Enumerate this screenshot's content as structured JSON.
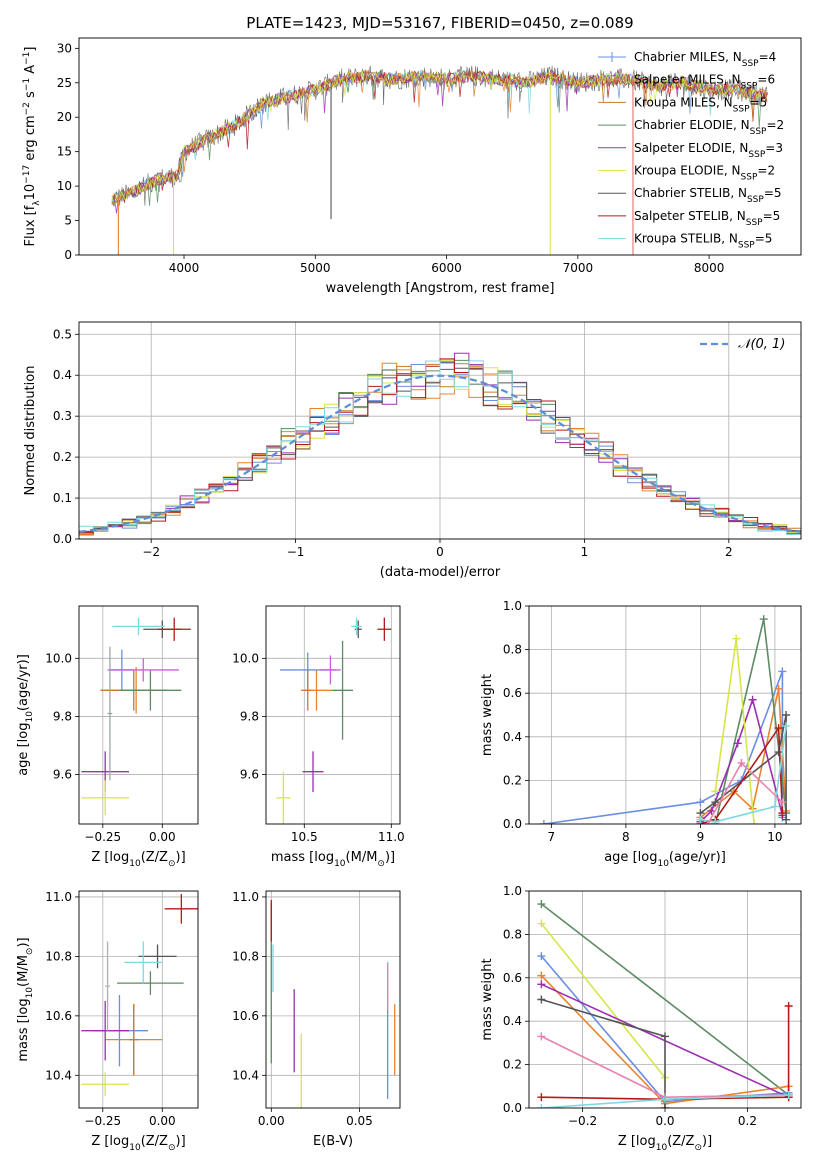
{
  "title": "PLATE=1423, MJD=53167, FIBERID=0450, z=0.089",
  "models": [
    {
      "label": "Chabrier MILES, N",
      "n": "4",
      "color": "#6a8fe0"
    },
    {
      "label": "Salpeter MILES, N",
      "n": "6",
      "color": "#e8842f"
    },
    {
      "label": "Kroupa MILES, N",
      "n": "5",
      "color": "#c77a2a"
    },
    {
      "label": "Chabrier ELODIE, N",
      "n": "2",
      "color": "#5d8b63"
    },
    {
      "label": "Salpeter ELODIE, N",
      "n": "3",
      "color": "#9b2fb0"
    },
    {
      "label": "Kroupa ELODIE, N",
      "n": "2",
      "color": "#d6e64a"
    },
    {
      "label": "Chabrier STELIB, N",
      "n": "5",
      "color": "#555555"
    },
    {
      "label": "Salpeter STELIB, N",
      "n": "5",
      "color": "#b31a1a"
    },
    {
      "label": "Kroupa STELIB, N",
      "n": "5",
      "color": "#7fd8e0"
    }
  ],
  "ssp_subscript": "SSP",
  "chart_data": [
    {
      "id": "spectrum",
      "type": "line",
      "xlabel": "wavelength [Angstrom, rest frame]",
      "ylabel": "Flux [f",
      "ylabel_sub": "λ",
      "ylabel_rest": "10",
      "ylabel_sup1": "−17",
      "ylabel_tail": " erg cm",
      "ylabel_sup2": "−2",
      "ylabel_tail2": " s",
      "ylabel_sup3": "−1",
      "ylabel_tail3": " A",
      "ylabel_sup4": "−1",
      "ylabel_end": "]",
      "xlim": [
        3200,
        8700
      ],
      "ylim": [
        0,
        31.5
      ],
      "xticks": [
        "4000",
        "5000",
        "6000",
        "7000",
        "8000"
      ],
      "yticks": [
        "0",
        "5",
        "10",
        "15",
        "20",
        "25",
        "30"
      ],
      "envelope_x": [
        3450,
        3600,
        3800,
        3950,
        4000,
        4200,
        4400,
        4600,
        4800,
        5000,
        5200,
        5400,
        5600,
        5800,
        6000,
        6200,
        6400,
        6600,
        6800,
        7000,
        7200,
        7400,
        7600,
        7800,
        8000,
        8200,
        8450
      ],
      "envelope_y": [
        8,
        9,
        11,
        11.5,
        15,
        17,
        19,
        22,
        23,
        24,
        25.5,
        26,
        25.5,
        26,
        25.5,
        26,
        25.5,
        25,
        26,
        25,
        25.5,
        25.5,
        24.5,
        25,
        24,
        24,
        23
      ],
      "spikes": [
        {
          "x": 3500,
          "y": 0,
          "color": "#e8842f"
        },
        {
          "x": 3920,
          "y": 0,
          "color": "#d6e64a"
        },
        {
          "x": 5120,
          "y": 5.2,
          "color": "#555555"
        },
        {
          "x": 6790,
          "y": 0,
          "color": "#d6e64a"
        },
        {
          "x": 7420,
          "y": 0,
          "color": "#e87070"
        }
      ]
    },
    {
      "id": "residuals",
      "type": "histogram",
      "xlabel": "(data-model)/error",
      "ylabel": "Normed distribution",
      "legend_label": "𝒩(0, 1)",
      "xlim": [
        -2.5,
        2.5
      ],
      "ylim": [
        0,
        0.53
      ],
      "xticks": [
        "−2",
        "−1",
        "0",
        "1",
        "2"
      ],
      "yticks": [
        "0.0",
        "0.1",
        "0.2",
        "0.3",
        "0.4",
        "0.5"
      ],
      "bin_width": 0.1,
      "gaussian_color": "#5b8fd6"
    },
    {
      "id": "age-vs-z",
      "type": "scatter",
      "xlabel": "Z [log",
      "xlabel_sub": "10",
      "xlabel_rest": "(Z/Z",
      "xlabel_sun": "⊙",
      "xlabel_end": ")]",
      "ylabel": "age  [log",
      "ylabel_sub": "10",
      "ylabel_rest": "(age/yr)]",
      "xlim": [
        -0.35,
        0.15
      ],
      "ylim": [
        9.43,
        10.18
      ],
      "xticks": [
        "−0.25",
        "0.00"
      ],
      "yticks": [
        "9.6",
        "9.8",
        "10.0"
      ],
      "points": [
        {
          "x": -0.17,
          "y": 9.96,
          "xerr": 0.05,
          "yerr": 0.07,
          "color": "#6a8fe0"
        },
        {
          "x": -0.11,
          "y": 9.89,
          "xerr": 0.13,
          "yerr": 0.08,
          "color": "#e8842f"
        },
        {
          "x": -0.12,
          "y": 9.89,
          "xerr": 0.14,
          "yerr": 0.07,
          "color": "#c77a2a"
        },
        {
          "x": -0.05,
          "y": 9.89,
          "xerr": 0.13,
          "yerr": 0.07,
          "color": "#5d8b63"
        },
        {
          "x": -0.24,
          "y": 9.61,
          "xerr": 0.1,
          "yerr": 0.07,
          "color": "#9b2fb0"
        },
        {
          "x": -0.24,
          "y": 9.52,
          "xerr": 0.1,
          "yerr": 0.06,
          "color": "#d6e64a"
        },
        {
          "x": 0.0,
          "y": 10.1,
          "xerr": 0.08,
          "yerr": 0.03,
          "color": "#555555"
        },
        {
          "x": 0.05,
          "y": 10.1,
          "xerr": 0.07,
          "yerr": 0.04,
          "color": "#b31a1a"
        },
        {
          "x": -0.1,
          "y": 10.11,
          "xerr": 0.11,
          "yerr": 0.03,
          "color": "#7fd8e0"
        },
        {
          "x": -0.08,
          "y": 9.96,
          "xerr": 0.15,
          "yerr": 0.04,
          "color": "#c962d8"
        },
        {
          "x": -0.22,
          "y": 9.81,
          "xerr": 0.01,
          "yerr": 0.23,
          "color": "#9aa8a8"
        }
      ]
    },
    {
      "id": "age-vs-mass",
      "type": "scatter",
      "xlabel": "mass [log",
      "xlabel_sub": "10",
      "xlabel_rest": "(M/M",
      "xlabel_sun": "⊙",
      "xlabel_end": ")]",
      "xlim": [
        10.28,
        11.05
      ],
      "ylim": [
        9.43,
        10.18
      ],
      "xticks": [
        "10.5",
        "11.0"
      ],
      "yticks": [
        "9.6",
        "9.8",
        "10.0"
      ],
      "points": [
        {
          "x": 10.52,
          "y": 9.96,
          "xerr": 0.16,
          "yerr": 0.06,
          "color": "#6a8fe0"
        },
        {
          "x": 10.57,
          "y": 9.89,
          "xerr": 0.09,
          "yerr": 0.07,
          "color": "#e8842f"
        },
        {
          "x": 10.52,
          "y": 9.89,
          "xerr": 0.02,
          "yerr": 0.07,
          "color": "#c77a2a"
        },
        {
          "x": 10.72,
          "y": 9.89,
          "xerr": 0.06,
          "yerr": 0.17,
          "color": "#5d8b63"
        },
        {
          "x": 10.55,
          "y": 9.61,
          "xerr": 0.06,
          "yerr": 0.07,
          "color": "#9b2fb0"
        },
        {
          "x": 10.38,
          "y": 9.52,
          "xerr": 0.04,
          "yerr": 0.09,
          "color": "#d6e64a"
        },
        {
          "x": 10.81,
          "y": 10.1,
          "xerr": 0.02,
          "yerr": 0.03,
          "color": "#555555"
        },
        {
          "x": 10.96,
          "y": 10.1,
          "xerr": 0.04,
          "yerr": 0.04,
          "color": "#b31a1a"
        },
        {
          "x": 10.8,
          "y": 10.11,
          "xerr": 0.03,
          "yerr": 0.03,
          "color": "#7fd8e0"
        },
        {
          "x": 10.65,
          "y": 9.96,
          "xerr": 0.06,
          "yerr": 0.05,
          "color": "#c962d8"
        }
      ]
    },
    {
      "id": "weight-vs-age",
      "type": "line",
      "xlabel": "age  [log",
      "xlabel_sub": "10",
      "xlabel_rest": "(age/yr)]",
      "ylabel": "mass weight",
      "xlim": [
        6.7,
        10.35
      ],
      "ylim": [
        0,
        1.0
      ],
      "xticks": [
        "7",
        "8",
        "9",
        "10"
      ],
      "yticks": [
        "0.0",
        "0.2",
        "0.4",
        "0.6",
        "0.8",
        "1.0"
      ],
      "series": [
        {
          "color": "#6a8fe0",
          "x": [
            6.9,
            9.0,
            9.55,
            10.1,
            10.1
          ],
          "y": [
            0.0,
            0.1,
            0.2,
            0.7,
            0.03
          ]
        },
        {
          "color": "#e8842f",
          "x": [
            9.0,
            9.45,
            9.7,
            10.05,
            10.15
          ],
          "y": [
            0.03,
            0.15,
            0.07,
            0.62,
            0.06
          ]
        },
        {
          "color": "#5d8b63",
          "x": [
            9.2,
            9.85,
            10.15
          ],
          "y": [
            0.0,
            0.94,
            0.05
          ]
        },
        {
          "color": "#9b2fb0",
          "x": [
            9.0,
            9.15,
            9.5,
            9.7,
            10.1
          ],
          "y": [
            0.01,
            0.06,
            0.37,
            0.57,
            0.04
          ]
        },
        {
          "color": "#d6e64a",
          "x": [
            9.2,
            9.48,
            9.72
          ],
          "y": [
            0.15,
            0.85,
            0.0
          ]
        },
        {
          "color": "#555555",
          "x": [
            9.0,
            9.2,
            10.05,
            10.15,
            10.15
          ],
          "y": [
            0.05,
            0.1,
            0.33,
            0.5,
            0.02
          ]
        },
        {
          "color": "#b31a1a",
          "x": [
            9.0,
            9.2,
            10.05,
            10.1
          ],
          "y": [
            0.0,
            0.02,
            0.44,
            0.05
          ]
        },
        {
          "color": "#7fd8e0",
          "x": [
            9.0,
            9.2,
            10.0,
            10.15
          ],
          "y": [
            0.02,
            0.01,
            0.08,
            0.45
          ]
        },
        {
          "color": "#e882b0",
          "x": [
            9.1,
            9.55,
            10.1
          ],
          "y": [
            0.0,
            0.28,
            0.1
          ]
        }
      ]
    },
    {
      "id": "mass-vs-z",
      "type": "scatter",
      "xlabel": "Z [log",
      "xlabel_sub": "10",
      "xlabel_rest": "(Z/Z",
      "xlabel_sun": "⊙",
      "xlabel_end": ")]",
      "ylabel": "mass [log",
      "ylabel_sub": "10",
      "ylabel_rest": "(M/M",
      "ylabel_sun": "⊙",
      "ylabel_end": ")]",
      "xlim": [
        -0.35,
        0.15
      ],
      "ylim": [
        10.29,
        11.02
      ],
      "xticks": [
        "−0.25",
        "0.00"
      ],
      "yticks": [
        "10.4",
        "10.6",
        "10.8",
        "11.0"
      ],
      "points": [
        {
          "x": -0.18,
          "y": 10.55,
          "xerr": 0.12,
          "yerr": 0.12,
          "color": "#6a8fe0"
        },
        {
          "x": -0.12,
          "y": 10.52,
          "xerr": 0.12,
          "yerr": 0.12,
          "color": "#e8842f"
        },
        {
          "x": -0.12,
          "y": 10.52,
          "xerr": 0.02,
          "yerr": 0.12,
          "color": "#c77a2a"
        },
        {
          "x": -0.05,
          "y": 10.71,
          "xerr": 0.14,
          "yerr": 0.04,
          "color": "#5d8b63"
        },
        {
          "x": -0.24,
          "y": 10.55,
          "xerr": 0.1,
          "yerr": 0.1,
          "color": "#9b2fb0"
        },
        {
          "x": -0.24,
          "y": 10.37,
          "xerr": 0.1,
          "yerr": 0.04,
          "color": "#d6e64a"
        },
        {
          "x": -0.02,
          "y": 10.8,
          "xerr": 0.08,
          "yerr": 0.04,
          "color": "#555555"
        },
        {
          "x": 0.08,
          "y": 10.96,
          "xerr": 0.07,
          "yerr": 0.05,
          "color": "#b31a1a"
        },
        {
          "x": -0.08,
          "y": 10.78,
          "xerr": 0.08,
          "yerr": 0.07,
          "color": "#7fd8e0"
        },
        {
          "x": -0.23,
          "y": 10.7,
          "xerr": 0.01,
          "yerr": 0.15,
          "color": "#b0b0b0"
        }
      ]
    },
    {
      "id": "mass-vs-ebv",
      "type": "scatter",
      "xlabel": "E(B-V)",
      "xlim": [
        -0.003,
        0.073
      ],
      "ylim": [
        10.29,
        11.02
      ],
      "xticks": [
        "0.00",
        "0.05"
      ],
      "yticks": [
        "10.4",
        "10.6",
        "10.8",
        "11.0"
      ],
      "points": [
        {
          "x": 0.066,
          "y": 10.55,
          "xerr": 0.0,
          "yerr": 0.23,
          "color": "#6a8fe0"
        },
        {
          "x": 0.07,
          "y": 10.52,
          "xerr": 0.0,
          "yerr": 0.12,
          "color": "#e8842f"
        },
        {
          "x": 0.0,
          "y": 10.71,
          "xerr": 0.0,
          "yerr": 0.27,
          "color": "#5d8b63"
        },
        {
          "x": 0.013,
          "y": 10.55,
          "xerr": 0.0,
          "yerr": 0.14,
          "color": "#9b2fb0"
        },
        {
          "x": 0.017,
          "y": 10.37,
          "xerr": 0.0,
          "yerr": 0.17,
          "color": "#d6e64a"
        },
        {
          "x": 0.0,
          "y": 10.92,
          "xerr": 0.0,
          "yerr": 0.07,
          "color": "#b31a1a"
        },
        {
          "x": 0.001,
          "y": 10.76,
          "xerr": 0.0,
          "yerr": 0.08,
          "color": "#7fd8e0"
        },
        {
          "x": 0.066,
          "y": 10.7,
          "xerr": 0.0,
          "yerr": 0.08,
          "color": "#e882b0"
        }
      ]
    },
    {
      "id": "weight-vs-z",
      "type": "line",
      "xlabel": "Z [log",
      "xlabel_sub": "10",
      "xlabel_rest": "(Z/Z",
      "xlabel_sun": "⊙",
      "xlabel_end": ")]",
      "ylabel": "mass weight",
      "xlim": [
        -0.33,
        0.33
      ],
      "ylim": [
        0,
        1.0
      ],
      "xticks": [
        "−0.2",
        "0.0",
        "0.2"
      ],
      "yticks": [
        "0.0",
        "0.2",
        "0.4",
        "0.6",
        "0.8",
        "1.0"
      ],
      "series": [
        {
          "color": "#5d8b63",
          "x": [
            -0.3,
            0.3
          ],
          "y": [
            0.94,
            0.06
          ]
        },
        {
          "color": "#d6e64a",
          "x": [
            -0.3,
            0.0
          ],
          "y": [
            0.85,
            0.14
          ]
        },
        {
          "color": "#6a8fe0",
          "x": [
            -0.3,
            0.0,
            0.3
          ],
          "y": [
            0.7,
            0.03,
            0.07
          ]
        },
        {
          "color": "#e8842f",
          "x": [
            -0.3,
            0.0,
            0.3
          ],
          "y": [
            0.61,
            0.02,
            0.1
          ]
        },
        {
          "color": "#9b2fb0",
          "x": [
            -0.3,
            0.3
          ],
          "y": [
            0.57,
            0.05
          ]
        },
        {
          "color": "#555555",
          "x": [
            -0.3,
            0.0,
            0.0
          ],
          "y": [
            0.5,
            0.33,
            0.0
          ]
        },
        {
          "color": "#e882b0",
          "x": [
            -0.3,
            0.0,
            0.3
          ],
          "y": [
            0.33,
            0.05,
            0.06
          ]
        },
        {
          "color": "#b31a1a",
          "x": [
            -0.3,
            0.0,
            0.3,
            0.3
          ],
          "y": [
            0.05,
            0.04,
            0.05,
            0.47
          ]
        },
        {
          "color": "#7fd8e0",
          "x": [
            -0.3,
            0.0,
            0.3
          ],
          "y": [
            0.0,
            0.04,
            0.06
          ]
        }
      ]
    }
  ]
}
